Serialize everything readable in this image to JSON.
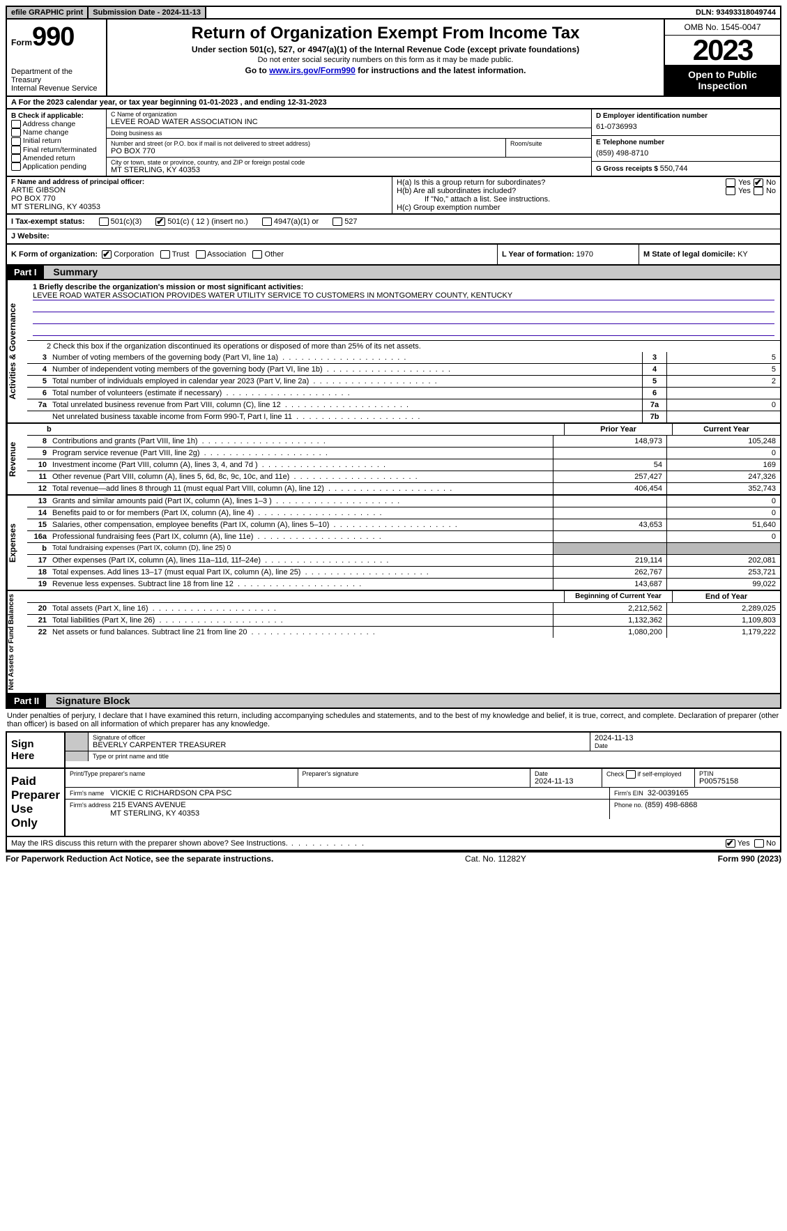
{
  "topbar": {
    "efile": "efile GRAPHIC print",
    "subdate_label": "Submission Date - ",
    "subdate": "2024-11-13",
    "dln_label": "DLN: ",
    "dln": "93493318049744"
  },
  "header": {
    "form_word": "Form",
    "form_num": "990",
    "dept": "Department of the Treasury\nInternal Revenue Service",
    "title": "Return of Organization Exempt From Income Tax",
    "sub1": "Under section 501(c), 527, or 4947(a)(1) of the Internal Revenue Code (except private foundations)",
    "sub2": "Do not enter social security numbers on this form as it may be made public.",
    "sub3_pre": "Go to ",
    "sub3_link": "www.irs.gov/Form990",
    "sub3_post": " for instructions and the latest information.",
    "omb": "OMB No. 1545-0047",
    "year": "2023",
    "open": "Open to Public Inspection"
  },
  "rowA": "A For the 2023 calendar year, or tax year beginning 01-01-2023   , and ending 12-31-2023",
  "boxB": {
    "hdr": "B Check if applicable:",
    "items": [
      "Address change",
      "Name change",
      "Initial return",
      "Final return/terminated",
      "Amended return",
      "Application pending"
    ]
  },
  "boxC": {
    "name_lbl": "C Name of organization",
    "name": "LEVEE ROAD WATER ASSOCIATION INC",
    "dba_lbl": "Doing business as",
    "dba": "",
    "street_lbl": "Number and street (or P.O. box if mail is not delivered to street address)",
    "street": "PO BOX 770",
    "room_lbl": "Room/suite",
    "room": "",
    "city_lbl": "City or town, state or province, country, and ZIP or foreign postal code",
    "city": "MT STERLING, KY  40353"
  },
  "boxD": {
    "lbl": "D Employer identification number",
    "val": "61-0736993"
  },
  "boxE": {
    "lbl": "E Telephone number",
    "val": "(859) 498-8710"
  },
  "boxG": {
    "lbl": "G Gross receipts $ ",
    "val": "550,744"
  },
  "boxF": {
    "lbl": "F  Name and address of principal officer:",
    "line1": "ARTIE GIBSON",
    "line2": "PO BOX 770",
    "line3": "MT STERLING, KY  40353"
  },
  "boxH": {
    "a_lbl": "H(a)  Is this a group return for subordinates?",
    "b_lbl": "H(b)  Are all subordinates included?",
    "b_note": "If \"No,\" attach a list. See instructions.",
    "c_lbl": "H(c)  Group exemption number",
    "yes": "Yes",
    "no": "No",
    "a_no_checked": true
  },
  "boxI": {
    "lbl": "I   Tax-exempt status:",
    "opt1": "501(c)(3)",
    "opt2": "501(c) ( 12 ) (insert no.)",
    "opt3": "4947(a)(1) or",
    "opt4": "527",
    "opt2_checked": true
  },
  "boxJ": {
    "lbl": "J   Website:",
    "val": ""
  },
  "boxK": {
    "lbl": "K Form of organization:",
    "opts": [
      "Corporation",
      "Trust",
      "Association",
      "Other"
    ],
    "checked": 0
  },
  "boxL": {
    "lbl": "L Year of formation: ",
    "val": "1970"
  },
  "boxM": {
    "lbl": "M State of legal domicile: ",
    "val": "KY"
  },
  "partI": {
    "hdr": "Part I",
    "title": "Summary"
  },
  "mission": {
    "lbl": "1   Briefly describe the organization's mission or most significant activities:",
    "text": "LEVEE ROAD WATER ASSOCIATION PROVIDES WATER UTILITY SERVICE TO CUSTOMERS IN MONTGOMERY COUNTY, KENTUCKY"
  },
  "check2": "2   Check this box      if the organization discontinued its operations or disposed of more than 25% of its net assets.",
  "governance_rows": [
    {
      "n": "3",
      "t": "Number of voting members of the governing body (Part VI, line 1a)",
      "box": "3",
      "v": "5"
    },
    {
      "n": "4",
      "t": "Number of independent voting members of the governing body (Part VI, line 1b)",
      "box": "4",
      "v": "5"
    },
    {
      "n": "5",
      "t": "Total number of individuals employed in calendar year 2023 (Part V, line 2a)",
      "box": "5",
      "v": "2"
    },
    {
      "n": "6",
      "t": "Total number of volunteers (estimate if necessary)",
      "box": "6",
      "v": ""
    },
    {
      "n": "7a",
      "t": "Total unrelated business revenue from Part VIII, column (C), line 12",
      "box": "7a",
      "v": "0"
    },
    {
      "n": "",
      "t": "Net unrelated business taxable income from Form 990-T, Part I, line 11",
      "box": "7b",
      "v": ""
    }
  ],
  "col_hdrs": {
    "b": "b",
    "py": "Prior Year",
    "cy": "Current Year"
  },
  "revenue_rows": [
    {
      "n": "8",
      "t": "Contributions and grants (Part VIII, line 1h)",
      "py": "148,973",
      "cy": "105,248"
    },
    {
      "n": "9",
      "t": "Program service revenue (Part VIII, line 2g)",
      "py": "",
      "cy": "0"
    },
    {
      "n": "10",
      "t": "Investment income (Part VIII, column (A), lines 3, 4, and 7d )",
      "py": "54",
      "cy": "169"
    },
    {
      "n": "11",
      "t": "Other revenue (Part VIII, column (A), lines 5, 6d, 8c, 9c, 10c, and 11e)",
      "py": "257,427",
      "cy": "247,326"
    },
    {
      "n": "12",
      "t": "Total revenue—add lines 8 through 11 (must equal Part VIII, column (A), line 12)",
      "py": "406,454",
      "cy": "352,743"
    }
  ],
  "expense_rows": [
    {
      "n": "13",
      "t": "Grants and similar amounts paid (Part IX, column (A), lines 1–3 )",
      "py": "",
      "cy": "0"
    },
    {
      "n": "14",
      "t": "Benefits paid to or for members (Part IX, column (A), line 4)",
      "py": "",
      "cy": "0"
    },
    {
      "n": "15",
      "t": "Salaries, other compensation, employee benefits (Part IX, column (A), lines 5–10)",
      "py": "43,653",
      "cy": "51,640"
    },
    {
      "n": "16a",
      "t": "Professional fundraising fees (Part IX, column (A), line 11e)",
      "py": "",
      "cy": "0"
    },
    {
      "n": "b",
      "t": "Total fundraising expenses (Part IX, column (D), line 25) 0",
      "py": "gray",
      "cy": "gray",
      "small": true
    },
    {
      "n": "17",
      "t": "Other expenses (Part IX, column (A), lines 11a–11d, 11f–24e)",
      "py": "219,114",
      "cy": "202,081"
    },
    {
      "n": "18",
      "t": "Total expenses. Add lines 13–17 (must equal Part IX, column (A), line 25)",
      "py": "262,767",
      "cy": "253,721"
    },
    {
      "n": "19",
      "t": "Revenue less expenses. Subtract line 18 from line 12",
      "py": "143,687",
      "cy": "99,022"
    }
  ],
  "net_hdrs": {
    "b": "Beginning of Current Year",
    "e": "End of Year"
  },
  "net_rows": [
    {
      "n": "20",
      "t": "Total assets (Part X, line 16)",
      "py": "2,212,562",
      "cy": "2,289,025"
    },
    {
      "n": "21",
      "t": "Total liabilities (Part X, line 26)",
      "py": "1,132,362",
      "cy": "1,109,803"
    },
    {
      "n": "22",
      "t": "Net assets or fund balances. Subtract line 21 from line 20",
      "py": "1,080,200",
      "cy": "1,179,222"
    }
  ],
  "vlabels": {
    "gov": "Activities & Governance",
    "rev": "Revenue",
    "exp": "Expenses",
    "net": "Net Assets or Fund Balances"
  },
  "partII": {
    "hdr": "Part II",
    "title": "Signature Block"
  },
  "sig_intro": "Under penalties of perjury, I declare that I have examined this return, including accompanying schedules and statements, and to the best of my knowledge and belief, it is true, correct, and complete. Declaration of preparer (other than officer) is based on all information of which preparer has any knowledge.",
  "sign_here": {
    "lbl": "Sign Here",
    "sig_lbl": "Signature of officer",
    "name": "BEVERLY CARPENTER  TREASURER",
    "name_lbl": "Type or print name and title",
    "date_lbl": "Date",
    "date": "2024-11-13"
  },
  "paid": {
    "lbl": "Paid Preparer Use Only",
    "h1": "Print/Type preparer's name",
    "h2": "Preparer's signature",
    "h3": "Date",
    "h3v": "2024-11-13",
    "h4": "Check       if self-employed",
    "h5": "PTIN",
    "h5v": "P00575158",
    "firm_lbl": "Firm's name",
    "firm": "VICKIE C RICHARDSON CPA PSC",
    "ein_lbl": "Firm's EIN",
    "ein": "32-0039165",
    "addr_lbl": "Firm's address",
    "addr1": "215 EVANS AVENUE",
    "addr2": "MT STERLING, KY  40353",
    "phone_lbl": "Phone no.",
    "phone": "(859) 498-6868"
  },
  "discuss": {
    "q": "May the IRS discuss this return with the preparer shown above? See Instructions.",
    "yes": "Yes",
    "no": "No",
    "yes_checked": true
  },
  "footer": {
    "l": "For Paperwork Reduction Act Notice, see the separate instructions.",
    "m": "Cat. No. 11282Y",
    "r": "Form 990 (2023)"
  }
}
